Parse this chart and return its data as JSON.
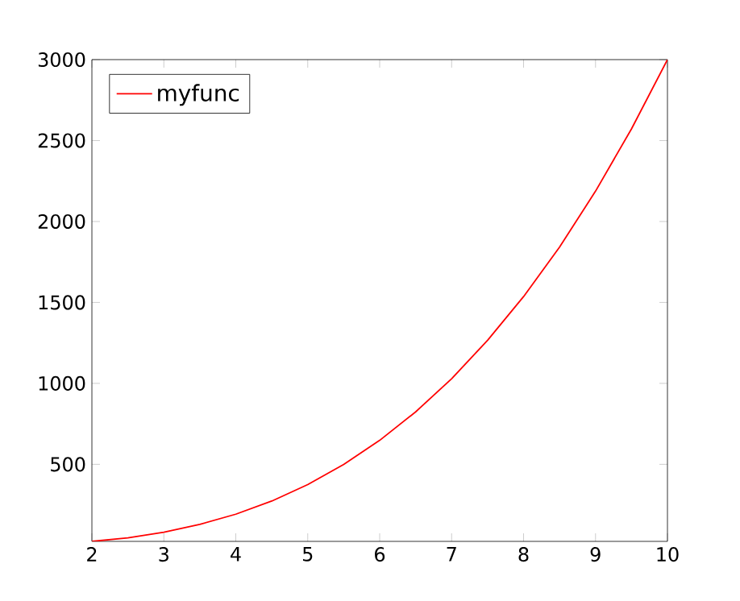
{
  "chart_data": {
    "type": "line",
    "x": [
      2,
      2.5,
      3,
      3.5,
      4,
      4.5,
      5,
      5.5,
      6,
      6.5,
      7,
      7.5,
      8,
      8.5,
      9,
      9.5,
      10
    ],
    "series": [
      {
        "name": "myfunc",
        "color": "#ff0000",
        "values": [
          24,
          46,
          81,
          129,
          192,
          273,
          375,
          499,
          648,
          824,
          1029,
          1266,
          1536,
          1842,
          2187,
          2572,
          3000
        ]
      }
    ],
    "xlim": [
      2,
      10
    ],
    "ylim": [
      24,
      3000
    ],
    "xticks": [
      2,
      3,
      4,
      5,
      6,
      7,
      8,
      9,
      10
    ],
    "yticks": [
      500,
      1000,
      1500,
      2000,
      2500,
      3000
    ],
    "legend": "top left"
  }
}
